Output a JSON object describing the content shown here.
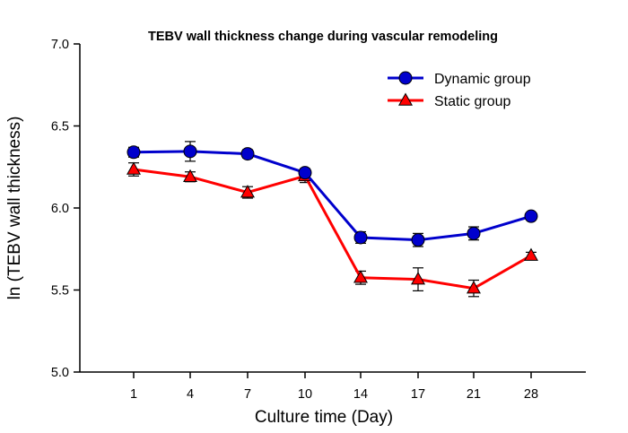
{
  "chart_data": {
    "type": "line",
    "title": "TEBV wall thickness change during vascular remodeling",
    "xlabel": "Culture time (Day)",
    "ylabel": "ln (TEBV wall thickness)",
    "categories": [
      "1",
      "4",
      "7",
      "10",
      "14",
      "17",
      "21",
      "28"
    ],
    "ylim": [
      5.0,
      7.0
    ],
    "yticks": [
      "5.0",
      "5.5",
      "6.0",
      "6.5",
      "7.0"
    ],
    "ytick_values": [
      5.0,
      5.5,
      6.0,
      6.5,
      7.0
    ],
    "legend_position": "top-right",
    "series": [
      {
        "name": "Dynamic group",
        "color": "#0000cc",
        "marker": "circle",
        "values": [
          6.34,
          6.345,
          6.33,
          6.215,
          5.82,
          5.805,
          5.845,
          5.95
        ],
        "errors": [
          0.03,
          0.06,
          0.025,
          0.025,
          0.035,
          0.04,
          0.04,
          0.02
        ]
      },
      {
        "name": "Static group",
        "color": "#ff0000",
        "marker": "triangle",
        "values": [
          6.235,
          6.19,
          6.095,
          6.195,
          5.575,
          5.565,
          5.51,
          5.71
        ],
        "errors": [
          0.04,
          0.03,
          0.035,
          0.04,
          0.04,
          0.07,
          0.05,
          0.02
        ]
      }
    ]
  }
}
